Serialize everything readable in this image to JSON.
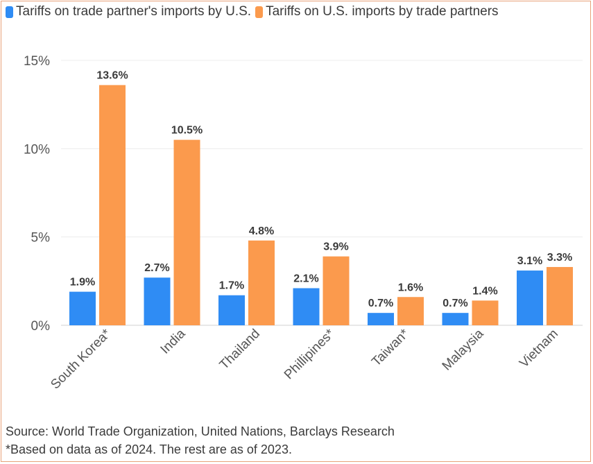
{
  "chart_data": {
    "type": "bar",
    "categories": [
      "South Korea*",
      "India",
      "Thailand",
      "Phillipines*",
      "Taiwan*",
      "Malaysia",
      "Vietnam"
    ],
    "series": [
      {
        "name": "Tariffs on trade partner's imports by U.S.",
        "color": "#2f8cf4",
        "values": [
          1.9,
          2.7,
          1.7,
          2.1,
          0.7,
          0.7,
          3.1
        ],
        "labels": [
          "1.9%",
          "2.7%",
          "1.7%",
          "2.1%",
          "0.7%",
          "0.7%",
          "3.1%"
        ]
      },
      {
        "name": "Tariffs on U.S. imports by trade partners",
        "color": "#fb9a4d",
        "values": [
          13.6,
          10.5,
          4.8,
          3.9,
          1.6,
          1.4,
          3.3
        ],
        "labels": [
          "13.6%",
          "10.5%",
          "4.8%",
          "3.9%",
          "1.6%",
          "1.4%",
          "3.3%"
        ]
      }
    ],
    "yticks": [
      0,
      5,
      10,
      15
    ],
    "ytick_labels": [
      "0%",
      "5%",
      "10%",
      "15%"
    ],
    "ylim": [
      0,
      15
    ],
    "grid": true,
    "legend_position": "top-left",
    "xlabel": "",
    "ylabel": ""
  },
  "footer": {
    "source": "Source: World Trade Organization, United Nations, Barclays Research",
    "note": "*Based on data as of 2024. The rest are as of 2023."
  }
}
